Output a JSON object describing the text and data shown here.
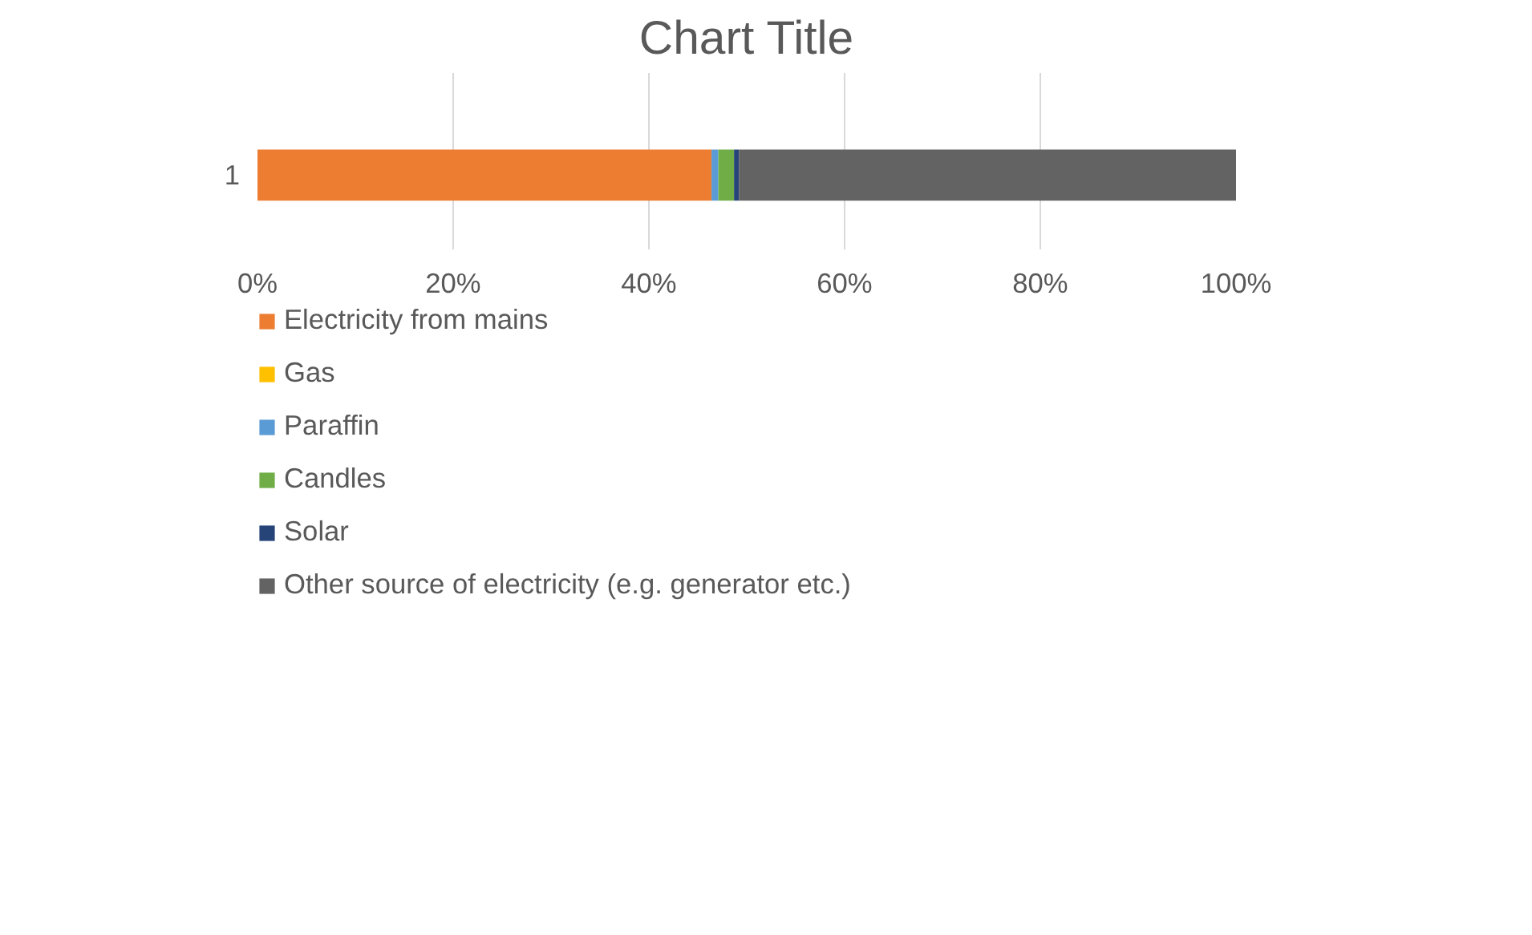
{
  "chart_data": {
    "type": "bar",
    "orientation": "horizontal",
    "stacked": true,
    "title": "Chart Title",
    "categories": [
      "1"
    ],
    "series": [
      {
        "name": "Electricity from mains",
        "color": "#ed7d31",
        "values": [
          46.4
        ]
      },
      {
        "name": "Gas",
        "color": "#ffc000",
        "values": [
          0
        ]
      },
      {
        "name": "Paraffin",
        "color": "#5b9bd5",
        "values": [
          0.7
        ]
      },
      {
        "name": "Candles",
        "color": "#70ad47",
        "values": [
          1.6
        ]
      },
      {
        "name": "Solar",
        "color": "#264478",
        "values": [
          0.5
        ]
      },
      {
        "name": "Other source of electricity (e.g. generator etc.)",
        "color": "#636363",
        "values": [
          50.8
        ]
      }
    ],
    "xlim": [
      0,
      100
    ],
    "xticks": [
      {
        "value": 0,
        "label": "0%"
      },
      {
        "value": 20,
        "label": "20%"
      },
      {
        "value": 40,
        "label": "40%"
      },
      {
        "value": 60,
        "label": "60%"
      },
      {
        "value": 80,
        "label": "80%"
      },
      {
        "value": 100,
        "label": "100%"
      }
    ],
    "grid": "x",
    "legend": "bottom"
  }
}
